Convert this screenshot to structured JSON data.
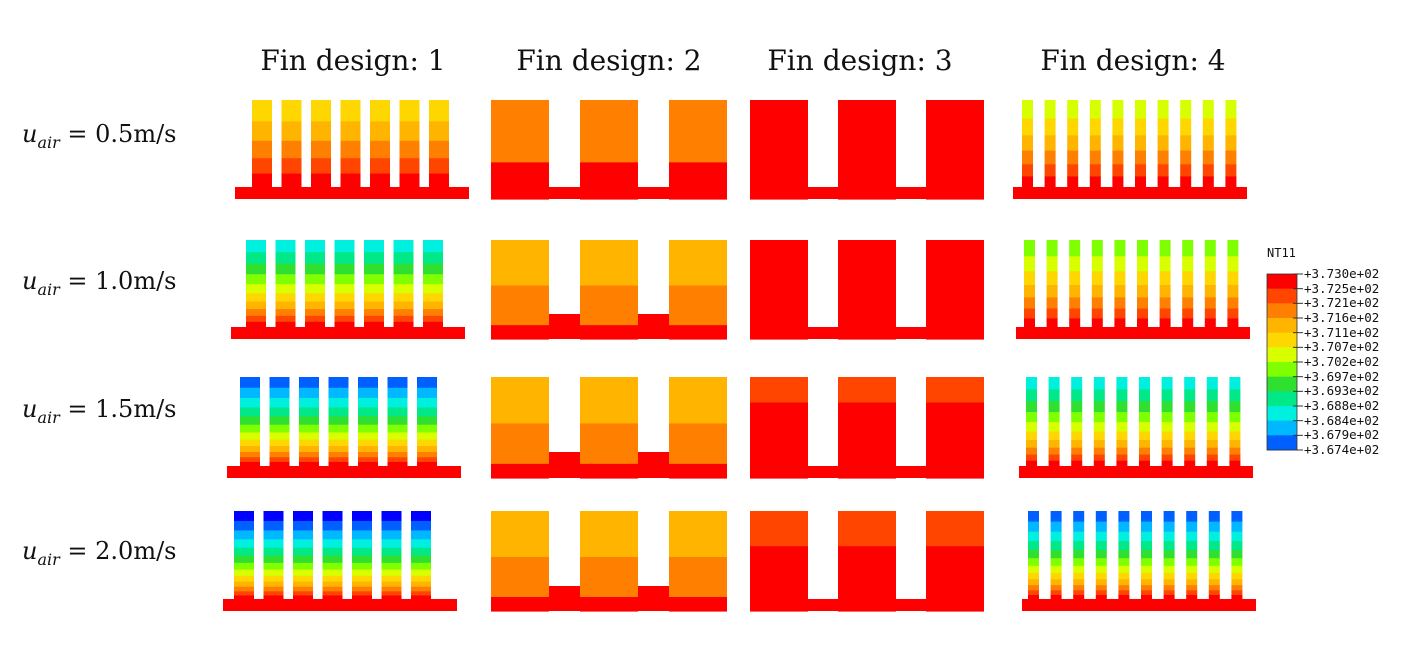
{
  "columns": [
    "Fin design: 1",
    "Fin design: 2",
    "Fin design: 3",
    "Fin design: 4"
  ],
  "rows": [
    {
      "prefix": "u",
      "sub": "air",
      "value": " = 0.5m/s"
    },
    {
      "prefix": "u",
      "sub": "air",
      "value": " = 1.0m/s"
    },
    {
      "prefix": "u",
      "sub": "air",
      "value": " = 1.5m/s"
    },
    {
      "prefix": "u",
      "sub": "air",
      "value": " = 2.0m/s"
    }
  ],
  "legend": {
    "title": "NT11",
    "labels": [
      "+3.730e+02",
      "+3.725e+02",
      "+3.721e+02",
      "+3.716e+02",
      "+3.711e+02",
      "+3.707e+02",
      "+3.702e+02",
      "+3.697e+02",
      "+3.693e+02",
      "+3.688e+02",
      "+3.684e+02",
      "+3.679e+02",
      "+3.674e+02"
    ],
    "colors": [
      "#ff0000",
      "#ff4500",
      "#ff8000",
      "#ffb400",
      "#ffd700",
      "#d8ff00",
      "#80ff00",
      "#30e030",
      "#00e888",
      "#00f0e0",
      "#00b8ff",
      "#0060ff",
      "#0000ff"
    ]
  }
}
